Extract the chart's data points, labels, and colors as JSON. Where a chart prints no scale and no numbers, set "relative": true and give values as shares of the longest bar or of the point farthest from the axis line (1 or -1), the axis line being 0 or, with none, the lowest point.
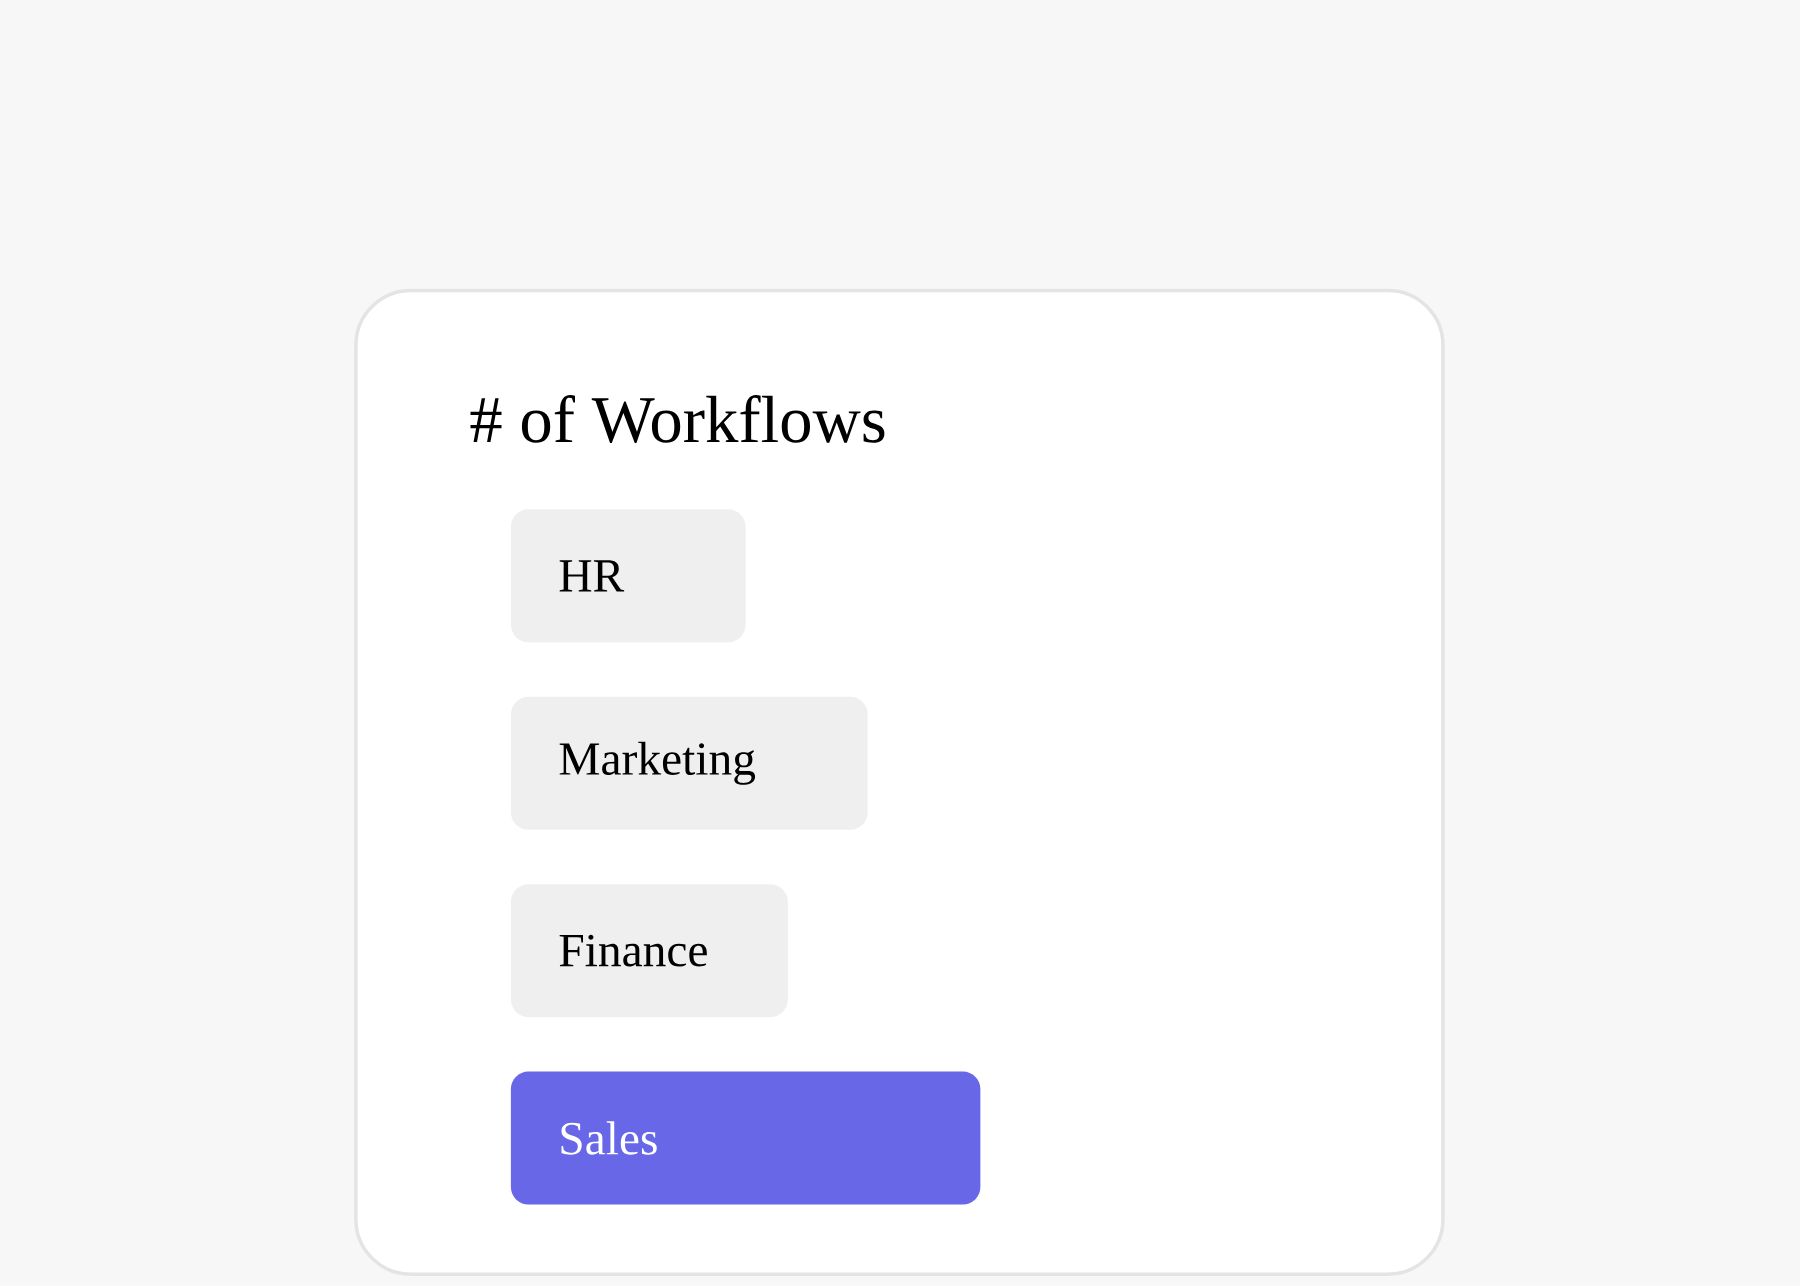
{
  "chart_data": {
    "type": "bar",
    "title": "# of Workflows",
    "orientation": "horizontal",
    "relative": true,
    "categories": [
      "HR",
      "Marketing",
      "Finance",
      "Sales"
    ],
    "values": [
      0.5,
      0.76,
      0.59,
      1.0
    ],
    "colors": [
      "#efefef",
      "#efefef",
      "#efefef",
      "#6767e8"
    ]
  }
}
